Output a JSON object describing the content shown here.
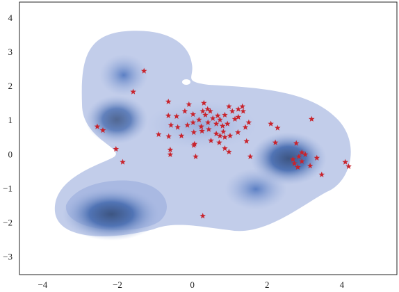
{
  "chart_data": {
    "type": "scatter",
    "marker": "star",
    "color": "#c8232c",
    "x": [
      -1.29,
      -1.58,
      -2.54,
      -2.39,
      -2.04,
      -1.86,
      0.28,
      3.19,
      2.1,
      2.28,
      2.22,
      4.09,
      4.18,
      3.46,
      3.33,
      3.15,
      2.78,
      2.93,
      2.85,
      3.02,
      2.73,
      2.82,
      2.93,
      2.69,
      -0.64,
      -0.64,
      -0.42,
      -0.2,
      0.02,
      -0.09,
      0.31,
      0.41,
      0.48,
      0.35,
      0.18,
      0.02,
      -0.13,
      -0.39,
      -0.57,
      -0.9,
      -0.63,
      -0.29,
      0.04,
      0.26,
      0.44,
      0.64,
      0.74,
      0.87,
      0.98,
      1.07,
      1.23,
      1.36,
      1.14,
      0.94,
      0.83,
      0.64,
      0.5,
      0.72,
      0.87,
      0.98,
      -0.59,
      -0.59,
      0.06,
      0.04,
      0.09,
      1.45,
      1.55,
      0.74,
      0.42,
      0.24,
      1.42,
      1.51,
      1.22,
      1.01,
      0.81,
      0.55,
      0.68,
      1.23,
      1.34,
      0.87,
      0.28
    ],
    "y": [
      2.47,
      1.86,
      0.84,
      0.73,
      0.18,
      -0.2,
      -1.78,
      1.06,
      0.92,
      0.8,
      0.37,
      -0.2,
      -0.33,
      -0.57,
      -0.08,
      -0.31,
      0.35,
      0.08,
      -0.04,
      0.02,
      -0.24,
      -0.35,
      -0.18,
      -0.12,
      1.57,
      1.16,
      1.14,
      1.29,
      1.2,
      1.49,
      1.53,
      1.35,
      1.29,
      1.18,
      1.04,
      0.96,
      0.88,
      0.82,
      0.88,
      0.61,
      0.55,
      0.57,
      0.67,
      0.71,
      0.76,
      0.92,
      1.04,
      1.18,
      1.43,
      1.29,
      1.35,
      1.29,
      1.06,
      0.92,
      0.69,
      0.63,
      0.43,
      0.37,
      0.2,
      0.1,
      0.16,
      0.02,
      0.33,
      0.29,
      -0.04,
      0.41,
      -0.04,
      0.57,
      0.96,
      0.84,
      0.82,
      0.96,
      0.67,
      0.57,
      0.86,
      1.08,
      1.16,
      1.12,
      1.43,
      0.53,
      1.29
    ],
    "xlim": [
      -4.62,
      5.47
    ],
    "ylim": [
      -3.5,
      4.49
    ],
    "xticks": [
      {
        "value": -4,
        "label": "−4"
      },
      {
        "value": -2,
        "label": "−2"
      },
      0,
      2,
      4
    ],
    "yticks": [
      {
        "value": -3,
        "label": "−3"
      },
      {
        "value": -2,
        "label": "−2"
      },
      {
        "value": -1,
        "label": "−1"
      },
      0,
      1,
      2,
      3,
      4
    ]
  }
}
